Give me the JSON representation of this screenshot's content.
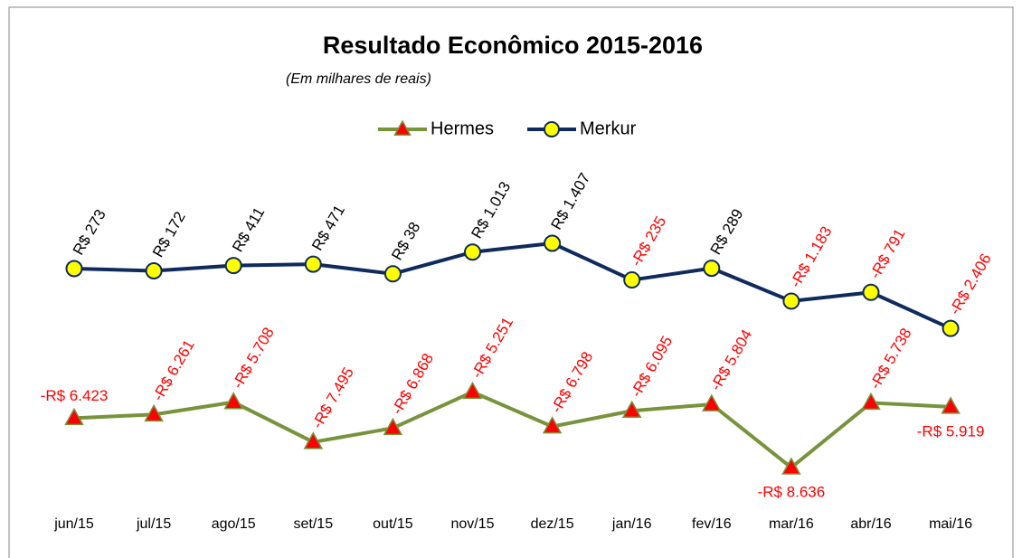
{
  "chart_data": {
    "type": "line",
    "title": "Resultado Econômico 2015-2016",
    "subtitle": "(Em milhares de reais)",
    "categories": [
      "jun/15",
      "jul/15",
      "ago/15",
      "set/15",
      "out/15",
      "nov/15",
      "dez/15",
      "jan/16",
      "fev/16",
      "mar/16",
      "abr/16",
      "mai/16"
    ],
    "series": [
      {
        "name": "Hermes",
        "color": "#77933c",
        "marker_color": "#ff0000",
        "values": [
          -6423,
          -6261,
          -5708,
          -7495,
          -6868,
          -5251,
          -6798,
          -6095,
          -5804,
          -8636,
          -5738,
          -5919
        ],
        "value_labels": [
          "-R$ 6.423",
          "-R$ 6.261",
          "-R$ 5.708",
          "-R$ 7.495",
          "-R$ 6.868",
          "-R$ 5.251",
          "-R$ 6.798",
          "-R$ 6.095",
          "-R$ 5.804",
          "-R$ 8.636",
          "-R$ 5.738",
          "-R$ 5.919"
        ]
      },
      {
        "name": "Merkur",
        "color": "#0f2a5c",
        "marker_color": "#ffff00",
        "values": [
          273,
          172,
          411,
          471,
          38,
          1013,
          1407,
          -235,
          289,
          -1183,
          -791,
          -2406
        ],
        "value_labels": [
          "R$ 273",
          "R$ 172",
          "R$ 411",
          "R$ 471",
          "R$ 38",
          "R$ 1.013",
          "R$ 1.407",
          "-R$ 235",
          "R$ 289",
          "-R$ 1.183",
          "-R$ 791",
          "-R$ 2.406"
        ]
      }
    ],
    "legend": "top"
  }
}
